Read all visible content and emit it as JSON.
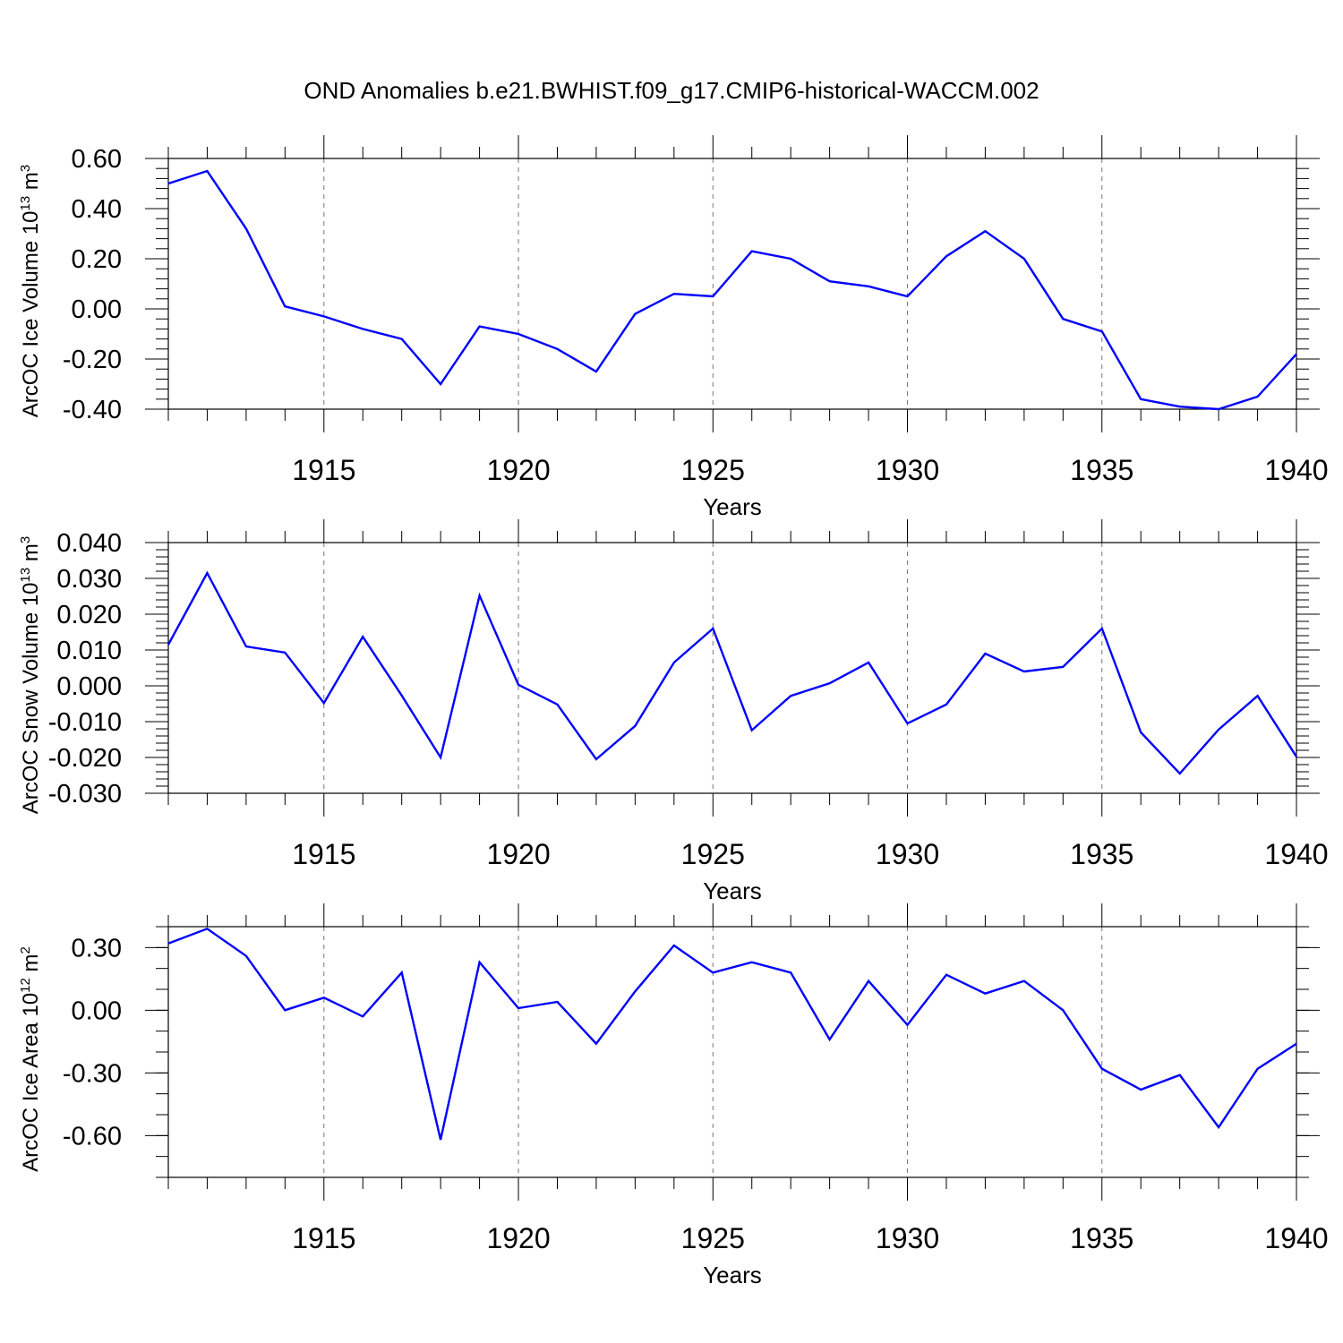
{
  "title": "OND Anomalies b.e21.BWHIST.f09_g17.CMIP6-historical-WACCM.002",
  "colors": {
    "line": "#0000ff",
    "axis": "#000000",
    "grid": "#777777"
  },
  "chart_data": [
    {
      "type": "line",
      "ylabel": {
        "text": "ArcOC Ice Volume 10",
        "exp": "13",
        "unit": " m",
        "unit_exp": "3"
      },
      "xlabel": "Years",
      "xlim": [
        1911,
        1940
      ],
      "ylim": [
        -0.4,
        0.6
      ],
      "grid": "vertical dashed at major x ticks",
      "x_ticks": [
        1915,
        1920,
        1925,
        1930,
        1935,
        1940
      ],
      "x_tick_labels": [
        "1915",
        "1920",
        "1925",
        "1930",
        "1935",
        "1940"
      ],
      "y_ticks": [
        0.6,
        0.4,
        0.2,
        0.0,
        -0.2,
        -0.4
      ],
      "y_tick_labels": [
        "0.60",
        "0.40",
        "0.20",
        "0.00",
        "-0.20",
        "-0.40"
      ],
      "y_minor_step": 0.04,
      "x": [
        1911,
        1912,
        1913,
        1914,
        1915,
        1916,
        1917,
        1918,
        1919,
        1920,
        1921,
        1922,
        1923,
        1924,
        1925,
        1926,
        1927,
        1928,
        1929,
        1930,
        1931,
        1932,
        1933,
        1934,
        1935,
        1936,
        1937,
        1938,
        1939,
        1940
      ],
      "values": [
        0.5,
        0.55,
        0.32,
        0.01,
        -0.03,
        -0.08,
        -0.12,
        -0.3,
        -0.07,
        -0.1,
        -0.16,
        -0.25,
        -0.02,
        0.06,
        0.05,
        0.23,
        0.2,
        0.11,
        0.09,
        0.05,
        0.21,
        0.31,
        0.2,
        -0.04,
        -0.09,
        -0.36,
        -0.39,
        -0.4,
        -0.35,
        -0.18
      ]
    },
    {
      "type": "line",
      "ylabel": {
        "text": "ArcOC Snow Volume 10",
        "exp": "13",
        "unit": " m",
        "unit_exp": "3"
      },
      "xlabel": "Years",
      "xlim": [
        1911,
        1940
      ],
      "ylim": [
        -0.03,
        0.04
      ],
      "grid": "vertical dashed at major x ticks",
      "x_ticks": [
        1915,
        1920,
        1925,
        1930,
        1935,
        1940
      ],
      "x_tick_labels": [
        "1915",
        "1920",
        "1925",
        "1930",
        "1935",
        "1940"
      ],
      "y_ticks": [
        0.04,
        0.03,
        0.02,
        0.01,
        0.0,
        -0.01,
        -0.02,
        -0.03
      ],
      "y_tick_labels": [
        "0.040",
        "0.030",
        "0.020",
        "0.010",
        "0.000",
        "-0.010",
        "-0.020",
        "-0.030"
      ],
      "y_minor_step": 0.002,
      "x": [
        1911,
        1912,
        1913,
        1914,
        1915,
        1916,
        1917,
        1918,
        1919,
        1920,
        1921,
        1922,
        1923,
        1924,
        1925,
        1926,
        1927,
        1928,
        1929,
        1930,
        1931,
        1932,
        1933,
        1934,
        1935,
        1936,
        1937,
        1938,
        1939,
        1940
      ],
      "values": [
        0.0115,
        0.0315,
        0.011,
        0.0093,
        -0.0048,
        0.0137,
        -0.0027,
        -0.02,
        0.0252,
        0.0003,
        -0.0052,
        -0.0205,
        -0.0112,
        0.0065,
        0.016,
        -0.0124,
        -0.0028,
        0.0007,
        0.0065,
        -0.0105,
        -0.0052,
        0.009,
        0.004,
        0.0053,
        0.016,
        -0.013,
        -0.0245,
        -0.0122,
        -0.0028,
        -0.0198
      ]
    },
    {
      "type": "line",
      "ylabel": {
        "text": "ArcOC Ice Area 10",
        "exp": "12",
        "unit": " m",
        "unit_exp": "2"
      },
      "xlabel": "Years",
      "xlim": [
        1911,
        1940
      ],
      "ylim": [
        -0.8,
        0.4
      ],
      "grid": "vertical dashed at major x ticks",
      "x_ticks": [
        1915,
        1920,
        1925,
        1930,
        1935,
        1940
      ],
      "x_tick_labels": [
        "1915",
        "1920",
        "1925",
        "1930",
        "1935",
        "1940"
      ],
      "y_ticks": [
        0.3,
        0.0,
        -0.3,
        -0.6
      ],
      "y_tick_labels": [
        "0.30",
        "0.00",
        "-0.30",
        "-0.60"
      ],
      "y_minor_step": 0.1,
      "x": [
        1911,
        1912,
        1913,
        1914,
        1915,
        1916,
        1917,
        1918,
        1919,
        1920,
        1921,
        1922,
        1923,
        1924,
        1925,
        1926,
        1927,
        1928,
        1929,
        1930,
        1931,
        1932,
        1933,
        1934,
        1935,
        1936,
        1937,
        1938,
        1939,
        1940
      ],
      "values": [
        0.32,
        0.39,
        0.26,
        0.0,
        0.06,
        -0.03,
        0.18,
        -0.62,
        0.23,
        0.01,
        0.04,
        -0.16,
        0.09,
        0.31,
        0.18,
        0.23,
        0.18,
        -0.14,
        0.14,
        -0.07,
        0.17,
        0.08,
        0.14,
        0.0,
        -0.28,
        -0.38,
        -0.31,
        -0.56,
        -0.28,
        -0.16
      ]
    }
  ]
}
